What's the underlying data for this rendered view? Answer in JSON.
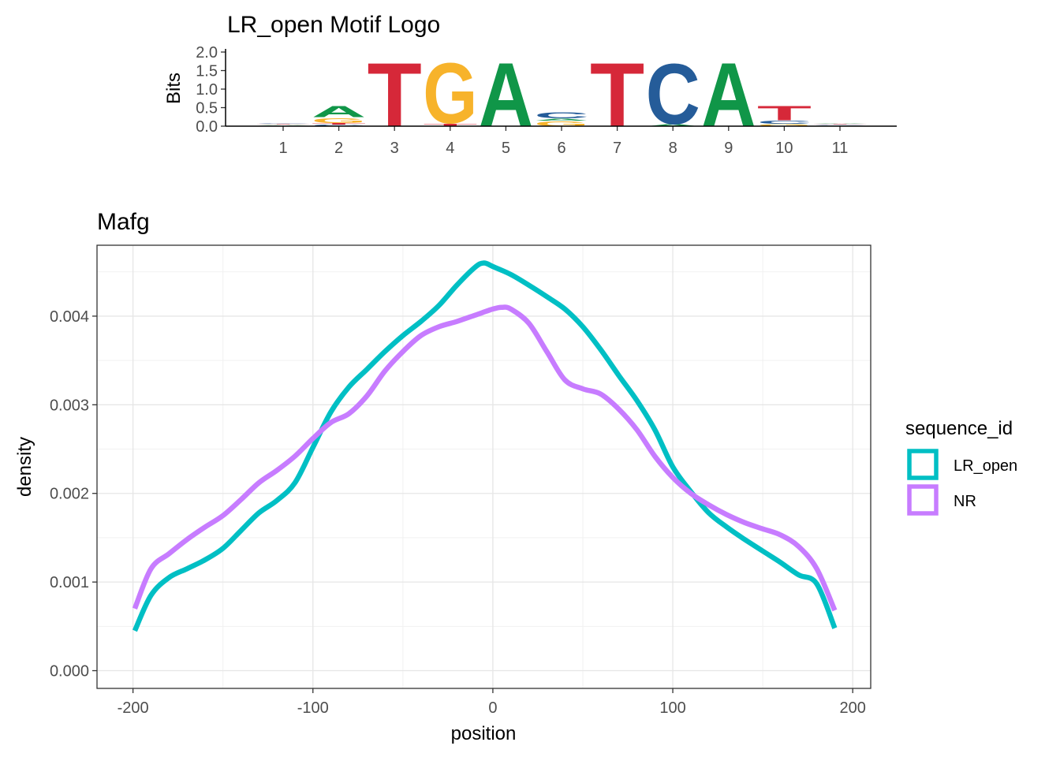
{
  "chart_data": [
    {
      "type": "sequence-logo",
      "title": "LR_open Motif Logo",
      "ylabel": "Bits",
      "xlabel": "",
      "ylim": [
        0,
        2.0
      ],
      "yticks": [
        "0.0",
        "0.5",
        "1.0",
        "1.5",
        "2.0"
      ],
      "ytick_values": [
        0,
        0.5,
        1.0,
        1.5,
        2.0
      ],
      "positions": [
        "1",
        "2",
        "3",
        "4",
        "5",
        "6",
        "7",
        "8",
        "9",
        "10",
        "11"
      ],
      "colors": {
        "A": "#109648",
        "C": "#255C99",
        "G": "#F7B32B",
        "T": "#D62839"
      },
      "stacks": [
        [
          {
            "base": "G",
            "bits": 0.02
          },
          {
            "base": "A",
            "bits": 0.02
          },
          {
            "base": "T",
            "bits": 0.02
          },
          {
            "base": "C",
            "bits": 0.02
          }
        ],
        [
          {
            "base": "C",
            "bits": 0.04
          },
          {
            "base": "T",
            "bits": 0.05
          },
          {
            "base": "G",
            "bits": 0.15
          },
          {
            "base": "A",
            "bits": 0.35
          }
        ],
        [
          {
            "base": "T",
            "bits": 2.0
          }
        ],
        [
          {
            "base": "T",
            "bits": 0.08
          },
          {
            "base": "G",
            "bits": 1.9
          }
        ],
        [
          {
            "base": "A",
            "bits": 2.0
          }
        ],
        [
          {
            "base": "G",
            "bits": 0.15
          },
          {
            "base": "A",
            "bits": 0.06
          },
          {
            "base": "C",
            "bits": 0.2
          }
        ],
        [
          {
            "base": "T",
            "bits": 2.0
          }
        ],
        [
          {
            "base": "A",
            "bits": 0.06
          },
          {
            "base": "C",
            "bits": 1.9
          }
        ],
        [
          {
            "base": "A",
            "bits": 2.0
          }
        ],
        [
          {
            "base": "G",
            "bits": 0.06
          },
          {
            "base": "C",
            "bits": 0.1
          },
          {
            "base": "T",
            "bits": 0.45
          }
        ],
        [
          {
            "base": "G",
            "bits": 0.02
          },
          {
            "base": "C",
            "bits": 0.02
          },
          {
            "base": "T",
            "bits": 0.02
          },
          {
            "base": "A",
            "bits": 0.02
          }
        ]
      ]
    },
    {
      "type": "line",
      "title": "Mafg",
      "xlabel": "position",
      "ylabel": "density",
      "xlim": [
        -220,
        210
      ],
      "ylim": [
        -0.0002,
        0.0048
      ],
      "xticks": [
        "-200",
        "-100",
        "0",
        "100",
        "200"
      ],
      "xtick_values": [
        -200,
        -100,
        0,
        100,
        200
      ],
      "yticks": [
        "0.000",
        "0.001",
        "0.002",
        "0.003",
        "0.004"
      ],
      "ytick_values": [
        0,
        0.001,
        0.002,
        0.003,
        0.004
      ],
      "legend_title": "sequence_id",
      "legend_position": "right",
      "series": [
        {
          "name": "LR_open",
          "color": "#00BFC4",
          "x": [
            -199,
            -190,
            -180,
            -170,
            -160,
            -150,
            -140,
            -130,
            -120,
            -110,
            -100,
            -90,
            -80,
            -70,
            -60,
            -50,
            -40,
            -30,
            -20,
            -10,
            -5,
            0,
            10,
            20,
            30,
            40,
            50,
            60,
            70,
            80,
            90,
            100,
            110,
            120,
            130,
            140,
            150,
            160,
            170,
            180,
            190
          ],
          "y": [
            0.00045,
            0.00085,
            0.00105,
            0.00115,
            0.00125,
            0.00138,
            0.00158,
            0.00178,
            0.00192,
            0.00212,
            0.00252,
            0.00292,
            0.0032,
            0.0034,
            0.0036,
            0.00378,
            0.00394,
            0.00412,
            0.00435,
            0.00455,
            0.0046,
            0.00456,
            0.00447,
            0.00435,
            0.00422,
            0.00408,
            0.00388,
            0.00362,
            0.00333,
            0.00305,
            0.00272,
            0.0023,
            0.00202,
            0.00178,
            0.00162,
            0.00148,
            0.00135,
            0.00122,
            0.00108,
            0.00098,
            0.00048
          ]
        },
        {
          "name": "NR",
          "color": "#C77CFF",
          "x": [
            -199,
            -190,
            -180,
            -170,
            -160,
            -150,
            -140,
            -130,
            -120,
            -110,
            -100,
            -90,
            -80,
            -70,
            -60,
            -50,
            -40,
            -30,
            -20,
            -10,
            0,
            5,
            10,
            20,
            30,
            40,
            50,
            60,
            70,
            80,
            90,
            100,
            110,
            120,
            130,
            140,
            150,
            160,
            170,
            180,
            190
          ],
          "y": [
            0.0007,
            0.00115,
            0.00132,
            0.00148,
            0.00162,
            0.00175,
            0.00193,
            0.00212,
            0.00226,
            0.00242,
            0.00262,
            0.0028,
            0.0029,
            0.0031,
            0.00338,
            0.0036,
            0.00378,
            0.00388,
            0.00394,
            0.00401,
            0.00408,
            0.0041,
            0.00408,
            0.00392,
            0.0036,
            0.00328,
            0.00318,
            0.00312,
            0.00295,
            0.00272,
            0.00242,
            0.00218,
            0.002,
            0.00187,
            0.00176,
            0.00167,
            0.0016,
            0.00153,
            0.0014,
            0.00115,
            0.00068
          ]
        }
      ]
    }
  ]
}
